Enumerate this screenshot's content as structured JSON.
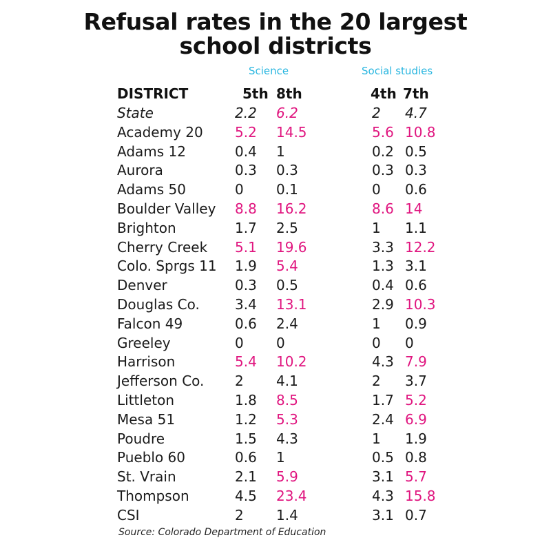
{
  "title_line1": "Refusal rates in the 20 largest",
  "title_line2": "school districts",
  "groups": {
    "science": "Science",
    "social_studies": "Social studies"
  },
  "headers": {
    "district": "DISTRICT",
    "science_5th": "5th",
    "science_8th": "8th",
    "social_4th": "4th",
    "social_7th": "7th"
  },
  "highlight_color": "#e0157f",
  "group_label_color": "#29b6e0",
  "source": "Source: Colorado Department of Education",
  "chart_data": {
    "type": "table",
    "title": "Refusal rates in the 20 largest school districts",
    "columns": [
      "DISTRICT",
      "Science 5th",
      "Science 8th",
      "Social studies 4th",
      "Social studies 7th"
    ],
    "rows": [
      {
        "district": "State",
        "s5": "2.2",
        "s8": "6.2",
        "ss4": "2",
        "ss7": "4.7",
        "hi": [
          false,
          true,
          false,
          false
        ],
        "italic": true
      },
      {
        "district": "Academy 20",
        "s5": "5.2",
        "s8": "14.5",
        "ss4": "5.6",
        "ss7": "10.8",
        "hi": [
          true,
          true,
          true,
          true
        ]
      },
      {
        "district": "Adams 12",
        "s5": "0.4",
        "s8": "1",
        "ss4": "0.2",
        "ss7": "0.5",
        "hi": [
          false,
          false,
          false,
          false
        ]
      },
      {
        "district": "Aurora",
        "s5": "0.3",
        "s8": "0.3",
        "ss4": "0.3",
        "ss7": "0.3",
        "hi": [
          false,
          false,
          false,
          false
        ]
      },
      {
        "district": "Adams 50",
        "s5": "0",
        "s8": "0.1",
        "ss4": "0",
        "ss7": "0.6",
        "hi": [
          false,
          false,
          false,
          false
        ]
      },
      {
        "district": "Boulder Valley",
        "s5": "8.8",
        "s8": "16.2",
        "ss4": "8.6",
        "ss7": "14",
        "hi": [
          true,
          true,
          true,
          true
        ]
      },
      {
        "district": "Brighton",
        "s5": "1.7",
        "s8": "2.5",
        "ss4": "1",
        "ss7": "1.1",
        "hi": [
          false,
          false,
          false,
          false
        ]
      },
      {
        "district": "Cherry Creek",
        "s5": "5.1",
        "s8": "19.6",
        "ss4": "3.3",
        "ss7": "12.2",
        "hi": [
          true,
          true,
          false,
          true
        ]
      },
      {
        "district": "Colo. Sprgs 11",
        "s5": "1.9",
        "s8": "5.4",
        "ss4": "1.3",
        "ss7": "3.1",
        "hi": [
          false,
          true,
          false,
          false
        ]
      },
      {
        "district": "Denver",
        "s5": "0.3",
        "s8": "0.5",
        "ss4": "0.4",
        "ss7": "0.6",
        "hi": [
          false,
          false,
          false,
          false
        ]
      },
      {
        "district": "Douglas Co.",
        "s5": "3.4",
        "s8": "13.1",
        "ss4": "2.9",
        "ss7": "10.3",
        "hi": [
          false,
          true,
          false,
          true
        ]
      },
      {
        "district": "Falcon 49",
        "s5": "0.6",
        "s8": "2.4",
        "ss4": "1",
        "ss7": "0.9",
        "hi": [
          false,
          false,
          false,
          false
        ]
      },
      {
        "district": "Greeley",
        "s5": "0",
        "s8": "0",
        "ss4": "0",
        "ss7": "0",
        "hi": [
          false,
          false,
          false,
          false
        ]
      },
      {
        "district": "Harrison",
        "s5": "5.4",
        "s8": "10.2",
        "ss4": "4.3",
        "ss7": "7.9",
        "hi": [
          true,
          true,
          false,
          true
        ]
      },
      {
        "district": "Jefferson Co.",
        "s5": "2",
        "s8": "4.1",
        "ss4": "2",
        "ss7": "3.7",
        "hi": [
          false,
          false,
          false,
          false
        ]
      },
      {
        "district": "Littleton",
        "s5": "1.8",
        "s8": "8.5",
        "ss4": "1.7",
        "ss7": "5.2",
        "hi": [
          false,
          true,
          false,
          true
        ]
      },
      {
        "district": "Mesa 51",
        "s5": "1.2",
        "s8": "5.3",
        "ss4": "2.4",
        "ss7": "6.9",
        "hi": [
          false,
          true,
          false,
          true
        ]
      },
      {
        "district": "Poudre",
        "s5": "1.5",
        "s8": "4.3",
        "ss4": "1",
        "ss7": "1.9",
        "hi": [
          false,
          false,
          false,
          false
        ]
      },
      {
        "district": "Pueblo 60",
        "s5": "0.6",
        "s8": "1",
        "ss4": "0.5",
        "ss7": "0.8",
        "hi": [
          false,
          false,
          false,
          false
        ]
      },
      {
        "district": "St. Vrain",
        "s5": "2.1",
        "s8": "5.9",
        "ss4": "3.1",
        "ss7": "5.7",
        "hi": [
          false,
          true,
          false,
          true
        ]
      },
      {
        "district": "Thompson",
        "s5": "4.5",
        "s8": "23.4",
        "ss4": "4.3",
        "ss7": "15.8",
        "hi": [
          false,
          true,
          false,
          true
        ]
      },
      {
        "district": "CSI",
        "s5": "2",
        "s8": "1.4",
        "ss4": "3.1",
        "ss7": "0.7",
        "hi": [
          false,
          false,
          false,
          false
        ]
      }
    ]
  }
}
